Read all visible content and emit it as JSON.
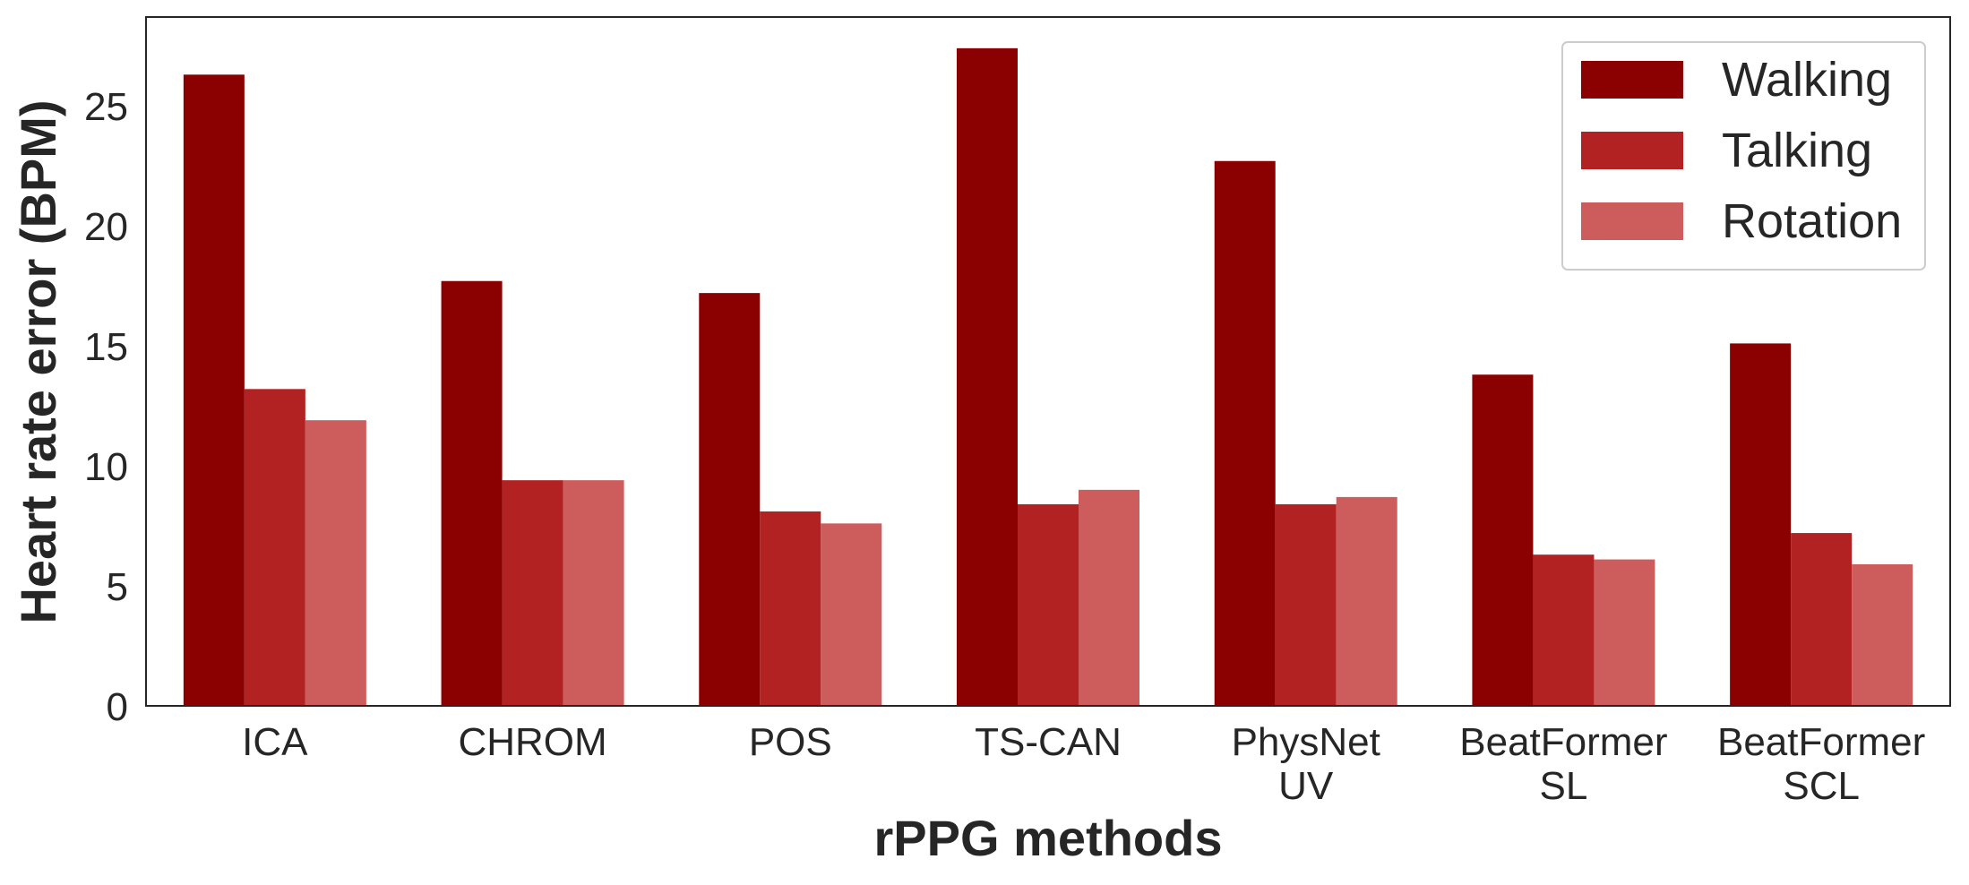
{
  "chart_data": {
    "type": "bar",
    "title": "",
    "xlabel": "rPPG methods",
    "ylabel": "Heart rate error (BPM)",
    "categories": [
      [
        "ICA"
      ],
      [
        "CHROM"
      ],
      [
        "POS"
      ],
      [
        "TS-CAN"
      ],
      [
        "PhysNet",
        "UV"
      ],
      [
        "BeatFormer",
        "SL"
      ],
      [
        "BeatFormer",
        "SCL"
      ]
    ],
    "series": [
      {
        "name": "Walking",
        "color": "#8b0000",
        "values": [
          26.3,
          17.7,
          17.2,
          27.4,
          22.7,
          13.8,
          15.1
        ]
      },
      {
        "name": "Talking",
        "color": "#b22222",
        "values": [
          13.2,
          9.4,
          8.1,
          8.4,
          8.4,
          6.3,
          7.2
        ]
      },
      {
        "name": "Rotation",
        "color": "#cd5c5c",
        "values": [
          11.9,
          9.4,
          7.6,
          9.0,
          8.7,
          6.1,
          5.9
        ]
      }
    ],
    "ylim": [
      0,
      28.7
    ],
    "yticks": [
      0,
      5,
      10,
      15,
      20,
      25
    ],
    "grid": false,
    "legend_position": "top-right"
  }
}
